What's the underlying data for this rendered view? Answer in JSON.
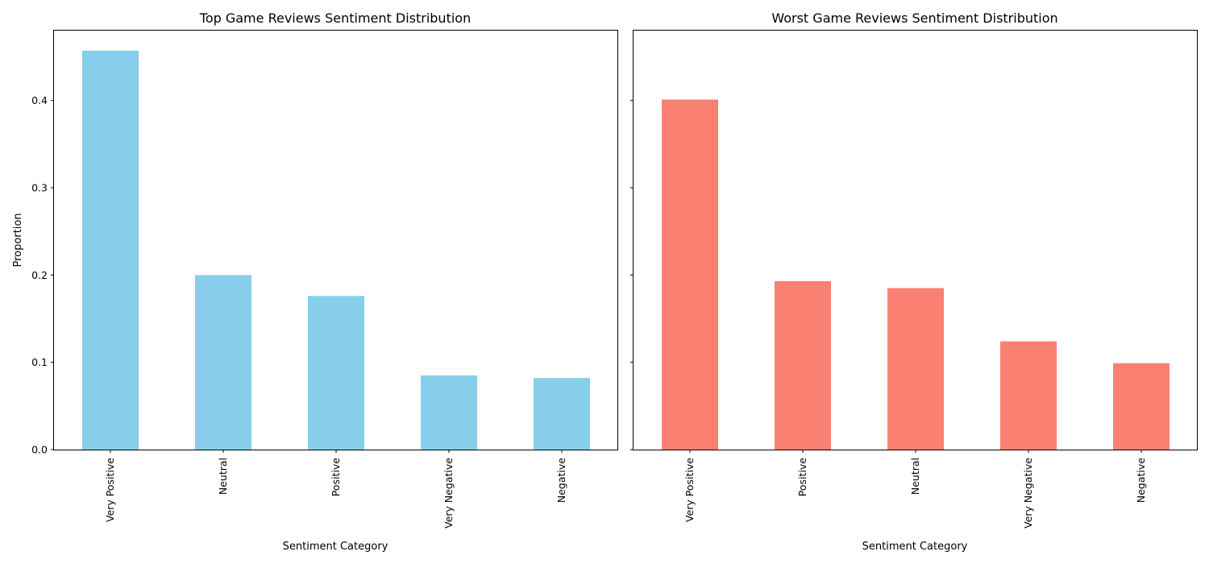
{
  "chart_data": [
    {
      "type": "bar",
      "title": "Top Game Reviews Sentiment Distribution",
      "xlabel": "Sentiment Category",
      "ylabel": "Proportion",
      "categories": [
        "Very Positive",
        "Neutral",
        "Positive",
        "Very Negative",
        "Negative"
      ],
      "values": [
        0.457,
        0.2,
        0.176,
        0.085,
        0.082
      ],
      "color": "#87CEEB",
      "ylim": [
        0,
        0.48
      ],
      "yticks": [
        "0.0",
        "0.1",
        "0.2",
        "0.3",
        "0.4"
      ],
      "grid": false
    },
    {
      "type": "bar",
      "title": "Worst Game Reviews Sentiment Distribution",
      "xlabel": "Sentiment Category",
      "ylabel": "",
      "categories": [
        "Very Positive",
        "Positive",
        "Neutral",
        "Very Negative",
        "Negative"
      ],
      "values": [
        0.401,
        0.193,
        0.185,
        0.124,
        0.099
      ],
      "color": "#FA8072",
      "ylim": [
        0,
        0.48
      ],
      "yticks": [
        "0.0",
        "0.1",
        "0.2",
        "0.3",
        "0.4"
      ],
      "shared_y": true,
      "grid": false
    }
  ]
}
